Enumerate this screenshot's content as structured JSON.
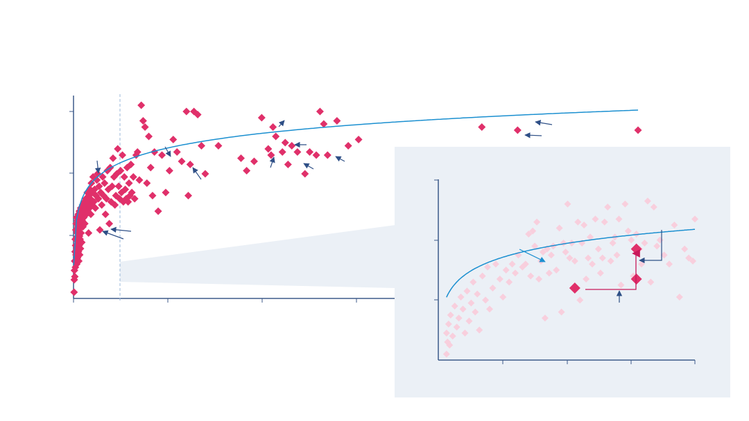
{
  "colors": {
    "point": "#e0306a",
    "point_faded": "#f8cfdd",
    "trend": "#1a8fd0",
    "axis": "#3d5a8a",
    "arrow": "#2e4f86",
    "inset_bg": "#ebf0f6",
    "callout_line": "#c8185a"
  },
  "chart_data": [
    {
      "type": "scatter",
      "title": "",
      "xlabel": "",
      "ylabel": "",
      "xlim": [
        0,
        3000
      ],
      "ylim": [
        0,
        3
      ],
      "x_ticks": [
        0,
        250,
        500,
        1000,
        1500,
        2000
      ],
      "y_ticks": [
        0,
        1,
        2,
        3
      ],
      "grid": false,
      "reference_line_x": 250,
      "series": [
        {
          "points": [
            [
              3,
              0.1
            ],
            [
              4,
              0.3
            ],
            [
              5,
              0.45
            ],
            [
              6,
              0.6
            ],
            [
              7,
              0.35
            ],
            [
              8,
              0.75
            ],
            [
              9,
              0.95
            ],
            [
              10,
              0.5
            ],
            [
              11,
              0.85
            ],
            [
              12,
              1.1
            ],
            [
              13,
              0.7
            ],
            [
              14,
              1.2
            ],
            [
              15,
              0.95
            ],
            [
              16,
              1.3
            ],
            [
              17,
              0.55
            ],
            [
              18,
              0.8
            ],
            [
              19,
              1.05
            ],
            [
              20,
              1.25
            ],
            [
              21,
              0.65
            ],
            [
              22,
              1.0
            ],
            [
              23,
              1.15
            ],
            [
              24,
              0.9
            ],
            [
              25,
              1.35
            ],
            [
              26,
              0.75
            ],
            [
              27,
              1.1
            ],
            [
              28,
              0.6
            ],
            [
              29,
              1.2
            ],
            [
              30,
              0.85
            ],
            [
              31,
              1.4
            ],
            [
              32,
              1.0
            ],
            [
              33,
              0.7
            ],
            [
              34,
              1.3
            ],
            [
              35,
              0.95
            ],
            [
              36,
              1.15
            ],
            [
              37,
              0.8
            ],
            [
              38,
              1.45
            ],
            [
              40,
              1.05
            ],
            [
              42,
              1.35
            ],
            [
              44,
              0.9
            ],
            [
              46,
              1.25
            ],
            [
              48,
              1.5
            ],
            [
              50,
              1.15
            ],
            [
              52,
              1.4
            ],
            [
              55,
              1.3
            ],
            [
              57,
              1.55
            ],
            [
              60,
              1.2
            ],
            [
              62,
              1.45
            ],
            [
              65,
              1.6
            ],
            [
              68,
              1.35
            ],
            [
              70,
              1.5
            ],
            [
              73,
              1.7
            ],
            [
              76,
              1.4
            ],
            [
              78,
              1.55
            ],
            [
              80,
              1.05
            ],
            [
              82,
              1.65
            ],
            [
              85,
              1.45
            ],
            [
              88,
              1.75
            ],
            [
              90,
              1.6
            ],
            [
              92,
              1.35
            ],
            [
              95,
              1.85
            ],
            [
              98,
              1.5
            ],
            [
              100,
              1.7
            ],
            [
              104,
              1.95
            ],
            [
              108,
              1.55
            ],
            [
              112,
              1.75
            ],
            [
              116,
              1.45
            ],
            [
              120,
              1.65
            ],
            [
              124,
              1.9
            ],
            [
              128,
              2.0
            ],
            [
              132,
              1.6
            ],
            [
              136,
              1.8
            ],
            [
              140,
              1.1
            ],
            [
              145,
              1.7
            ],
            [
              150,
              1.5
            ],
            [
              155,
              1.95
            ],
            [
              160,
              1.65
            ],
            [
              165,
              1.85
            ],
            [
              170,
              1.35
            ],
            [
              175,
              1.6
            ],
            [
              180,
              2.05
            ],
            [
              185,
              1.75
            ],
            [
              190,
              1.2
            ],
            [
              195,
              2.1
            ],
            [
              200,
              1.55
            ],
            [
              205,
              1.8
            ],
            [
              210,
              2.25
            ],
            [
              215,
              1.95
            ],
            [
              220,
              1.5
            ],
            [
              225,
              1.65
            ],
            [
              230,
              2.0
            ],
            [
              235,
              2.4
            ],
            [
              240,
              1.8
            ],
            [
              245,
              1.6
            ],
            [
              250,
              2.05
            ],
            [
              255,
              1.7
            ],
            [
              260,
              2.3
            ],
            [
              265,
              1.55
            ],
            [
              270,
              1.95
            ],
            [
              275,
              1.75
            ],
            [
              280,
              1.6
            ],
            [
              285,
              2.1
            ],
            [
              290,
              1.55
            ],
            [
              295,
              1.85
            ],
            [
              300,
              1.65
            ],
            [
              305,
              2.15
            ],
            [
              310,
              1.7
            ],
            [
              318,
              1.95
            ],
            [
              325,
              1.6
            ],
            [
              333,
              2.3
            ],
            [
              340,
              2.35
            ],
            [
              350,
              1.9
            ],
            [
              360,
              3.1
            ],
            [
              370,
              2.85
            ],
            [
              380,
              2.75
            ],
            [
              390,
              1.85
            ],
            [
              400,
              2.6
            ],
            [
              410,
              2.1
            ],
            [
              420,
              1.65
            ],
            [
              430,
              2.35
            ],
            [
              450,
              1.4
            ],
            [
              470,
              2.3
            ],
            [
              490,
              1.7
            ],
            [
              510,
              2.05
            ],
            [
              530,
              2.55
            ],
            [
              550,
              2.35
            ],
            [
              575,
              2.2
            ],
            [
              600,
              3.0
            ],
            [
              610,
              1.65
            ],
            [
              620,
              2.15
            ],
            [
              640,
              3.0
            ],
            [
              660,
              2.95
            ],
            [
              680,
              2.45
            ],
            [
              700,
              2.0
            ],
            [
              770,
              2.45
            ],
            [
              890,
              2.25
            ],
            [
              920,
              2.05
            ],
            [
              960,
              2.2
            ],
            [
              1000,
              2.9
            ],
            [
              1035,
              2.4
            ],
            [
              1050,
              2.3
            ],
            [
              1060,
              2.75
            ],
            [
              1075,
              2.6
            ],
            [
              1110,
              2.35
            ],
            [
              1125,
              2.5
            ],
            [
              1140,
              2.15
            ],
            [
              1160,
              2.45
            ],
            [
              1190,
              2.35
            ],
            [
              1230,
              2.0
            ],
            [
              1255,
              2.35
            ],
            [
              1290,
              2.3
            ],
            [
              1310,
              3.0
            ],
            [
              1330,
              2.8
            ],
            [
              1350,
              2.3
            ],
            [
              1400,
              2.85
            ],
            [
              1460,
              2.45
            ],
            [
              1515,
              2.55
            ],
            [
              2170,
              2.75
            ],
            [
              2360,
              2.7
            ],
            [
              3000,
              2.7
            ]
          ]
        }
      ],
      "trend": {
        "type": "log",
        "a": 0.3,
        "b": 0.34,
        "x_offset": 1
      }
    },
    {
      "type": "scatter",
      "title": "",
      "xlabel": "",
      "ylabel": "",
      "xlim": [
        0,
        250
      ],
      "ylim": [
        0,
        3
      ],
      "x_ticks": [
        0,
        62.5,
        125,
        187.5,
        250
      ],
      "y_ticks": [
        0,
        1,
        2,
        3
      ],
      "grid": false,
      "series": [
        {
          "style": "faded",
          "points": [
            [
              8,
              0.1
            ],
            [
              8,
              0.45
            ],
            [
              9,
              0.3
            ],
            [
              10,
              0.6
            ],
            [
              11,
              0.25
            ],
            [
              12,
              0.75
            ],
            [
              14,
              0.4
            ],
            [
              16,
              0.9
            ],
            [
              18,
              0.55
            ],
            [
              20,
              0.7
            ],
            [
              22,
              1.05
            ],
            [
              24,
              0.85
            ],
            [
              26,
              0.45
            ],
            [
              28,
              1.15
            ],
            [
              30,
              0.65
            ],
            [
              32,
              0.95
            ],
            [
              34,
              1.3
            ],
            [
              36,
              0.8
            ],
            [
              38,
              1.1
            ],
            [
              40,
              0.5
            ],
            [
              43,
              1.4
            ],
            [
              46,
              1.0
            ],
            [
              48,
              1.55
            ],
            [
              50,
              0.85
            ],
            [
              53,
              1.2
            ],
            [
              56,
              1.6
            ],
            [
              60,
              1.35
            ],
            [
              63,
              1.05
            ],
            [
              66,
              1.5
            ],
            [
              69,
              1.3
            ],
            [
              72,
              1.6
            ],
            [
              75,
              1.45
            ],
            [
              78,
              1.75
            ],
            [
              82,
              1.55
            ],
            [
              85,
              1.6
            ],
            [
              88,
              2.1
            ],
            [
              90,
              1.4
            ],
            [
              92,
              2.15
            ],
            [
              94,
              1.9
            ],
            [
              96,
              2.3
            ],
            [
              98,
              1.35
            ],
            [
              100,
              1.65
            ],
            [
              102,
              1.8
            ],
            [
              104,
              0.7
            ],
            [
              106,
              1.85
            ],
            [
              108,
              1.45
            ],
            [
              110,
              1.75
            ],
            [
              112,
              1.9
            ],
            [
              115,
              1.5
            ],
            [
              118,
              2.2
            ],
            [
              120,
              0.8
            ],
            [
              122,
              1.95
            ],
            [
              124,
              1.8
            ],
            [
              126,
              2.6
            ],
            [
              128,
              1.7
            ],
            [
              130,
              1.95
            ],
            [
              133,
              1.65
            ],
            [
              136,
              2.3
            ],
            [
              138,
              1.0
            ],
            [
              140,
              1.95
            ],
            [
              142,
              2.25
            ],
            [
              144,
              1.35
            ],
            [
              146,
              1.7
            ],
            [
              148,
              2.05
            ],
            [
              150,
              1.6
            ],
            [
              153,
              2.35
            ],
            [
              156,
              1.85
            ],
            [
              158,
              1.45
            ],
            [
              160,
              1.7
            ],
            [
              162,
              2.3
            ],
            [
              165,
              2.55
            ],
            [
              168,
              1.65
            ],
            [
              170,
              1.95
            ],
            [
              172,
              2.05
            ],
            [
              174,
              1.75
            ],
            [
              176,
              2.35
            ],
            [
              178,
              1.25
            ],
            [
              182,
              2.6
            ],
            [
              185,
              2.15
            ],
            [
              188,
              2.0
            ],
            [
              190,
              1.4
            ],
            [
              193,
              2.1
            ],
            [
              196,
              1.85
            ],
            [
              198,
              1.6
            ],
            [
              201,
              1.95
            ],
            [
              204,
              2.65
            ],
            [
              207,
              1.3
            ],
            [
              210,
              2.55
            ],
            [
              213,
              1.9
            ],
            [
              216,
              2.0
            ],
            [
              220,
              1.75
            ],
            [
              225,
              1.6
            ],
            [
              230,
              2.25
            ],
            [
              235,
              1.05
            ],
            [
              240,
              1.85
            ],
            [
              244,
              1.7
            ],
            [
              248,
              1.65
            ],
            [
              250,
              2.35
            ]
          ]
        },
        {
          "style": "highlight",
          "points": [
            [
              133,
              1.2
            ],
            [
              193,
              1.35
            ],
            [
              193,
              1.85
            ]
          ]
        }
      ],
      "trend": {
        "type": "log",
        "a": 0.3,
        "b": 0.34,
        "x_offset": 1
      }
    }
  ]
}
